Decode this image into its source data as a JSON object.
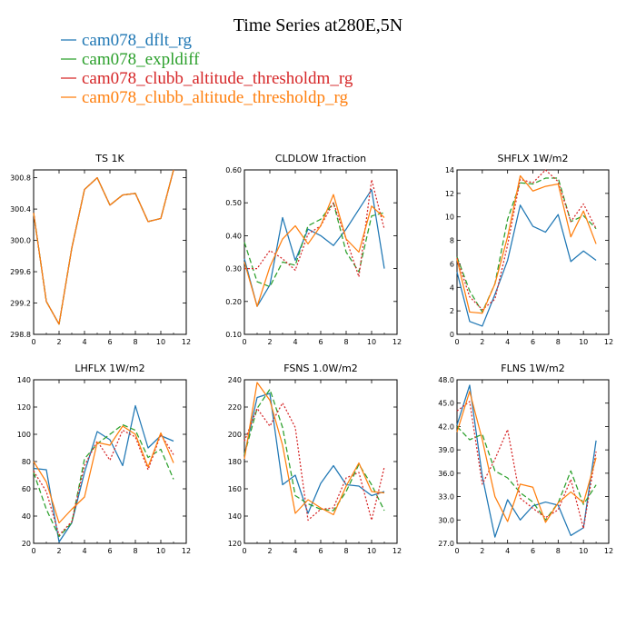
{
  "figure": {
    "title": "Time Series at280E,5N",
    "legend": [
      {
        "name": "cam078_dflt_rg",
        "color": "#1f77b4",
        "dash": "solid"
      },
      {
        "name": "cam078_expldiff",
        "color": "#2ca02c",
        "dash": "dash"
      },
      {
        "name": "cam078_clubb_altitude_thresholdm_rg",
        "color": "#d62728",
        "dash": "dot"
      },
      {
        "name": "cam078_clubb_altitude_thresholdp_rg",
        "color": "#ff7f0e",
        "dash": "solid"
      }
    ]
  },
  "chart_data": [
    {
      "type": "line",
      "title": "TS   1K",
      "x": [
        0,
        1,
        2,
        3,
        4,
        5,
        6,
        7,
        8,
        9,
        10,
        11
      ],
      "xlim": [
        0,
        12
      ],
      "xticks": [
        0,
        2,
        4,
        6,
        8,
        10,
        12
      ],
      "ylim": [
        298.8,
        300.9
      ],
      "yticks": [
        298.8,
        299.2,
        299.6,
        300.0,
        300.4,
        300.8
      ],
      "ydec": 1,
      "series": [
        {
          "name": "cam078_dflt_rg",
          "values": [
            300.35,
            299.22,
            298.93,
            299.9,
            300.65,
            300.8,
            300.45,
            300.58,
            300.6,
            300.24,
            300.28,
            300.9
          ]
        },
        {
          "name": "cam078_expldiff",
          "values": [
            300.35,
            299.22,
            298.93,
            299.9,
            300.65,
            300.8,
            300.45,
            300.58,
            300.6,
            300.24,
            300.28,
            300.9
          ]
        },
        {
          "name": "cam078_clubb_altitude_thresholdm_rg",
          "values": [
            300.35,
            299.22,
            298.93,
            299.9,
            300.65,
            300.8,
            300.45,
            300.58,
            300.6,
            300.24,
            300.28,
            300.9
          ]
        },
        {
          "name": "cam078_clubb_altitude_thresholdp_rg",
          "values": [
            300.35,
            299.22,
            298.93,
            299.9,
            300.65,
            300.8,
            300.45,
            300.58,
            300.6,
            300.24,
            300.28,
            300.9
          ]
        }
      ]
    },
    {
      "type": "line",
      "title": "CLDLOW   1fraction",
      "x": [
        0,
        1,
        2,
        3,
        4,
        5,
        6,
        7,
        8,
        9,
        10,
        11
      ],
      "xlim": [
        0,
        12
      ],
      "xticks": [
        0,
        2,
        4,
        6,
        8,
        10,
        12
      ],
      "ylim": [
        0.1,
        0.6
      ],
      "yticks": [
        0.1,
        0.2,
        0.3,
        0.4,
        0.5,
        0.6
      ],
      "ydec": 2,
      "series": [
        {
          "name": "cam078_dflt_rg",
          "values": [
            0.33,
            0.185,
            0.25,
            0.455,
            0.325,
            0.42,
            0.4,
            0.37,
            0.42,
            0.48,
            0.54,
            0.3
          ]
        },
        {
          "name": "cam078_expldiff",
          "values": [
            0.38,
            0.26,
            0.245,
            0.32,
            0.31,
            0.43,
            0.45,
            0.5,
            0.35,
            0.29,
            0.46,
            0.47
          ]
        },
        {
          "name": "cam078_clubb_altitude_thresholdm_rg",
          "values": [
            0.3,
            0.3,
            0.355,
            0.33,
            0.295,
            0.405,
            0.43,
            0.5,
            0.39,
            0.275,
            0.57,
            0.42
          ]
        },
        {
          "name": "cam078_clubb_altitude_thresholdp_rg",
          "values": [
            0.32,
            0.185,
            0.305,
            0.39,
            0.43,
            0.375,
            0.43,
            0.525,
            0.39,
            0.35,
            0.49,
            0.455
          ]
        }
      ]
    },
    {
      "type": "line",
      "title": "SHFLX   1W/m2",
      "x": [
        0,
        1,
        2,
        3,
        4,
        5,
        6,
        7,
        8,
        9,
        10,
        11
      ],
      "xlim": [
        0,
        12
      ],
      "xticks": [
        0,
        2,
        4,
        6,
        8,
        10,
        12
      ],
      "ylim": [
        0,
        14
      ],
      "yticks": [
        0,
        2,
        4,
        6,
        8,
        10,
        12,
        14
      ],
      "ydec": 0,
      "series": [
        {
          "name": "cam078_dflt_rg",
          "values": [
            5.3,
            1.1,
            0.7,
            3.4,
            6.3,
            11.0,
            9.2,
            8.7,
            10.2,
            6.2,
            7.1,
            6.3
          ]
        },
        {
          "name": "cam078_expldiff",
          "values": [
            6.6,
            3.7,
            1.9,
            4.3,
            9.8,
            12.9,
            12.8,
            13.3,
            13.3,
            9.6,
            10.1,
            9.0
          ]
        },
        {
          "name": "cam078_clubb_altitude_thresholdm_rg",
          "values": [
            6.5,
            3.2,
            2.1,
            3.0,
            7.6,
            13.2,
            12.9,
            14.0,
            13.0,
            9.6,
            11.1,
            9.0
          ]
        },
        {
          "name": "cam078_clubb_altitude_thresholdp_rg",
          "values": [
            6.4,
            1.9,
            1.8,
            4.3,
            8.3,
            13.5,
            12.2,
            12.6,
            12.8,
            8.3,
            10.5,
            7.7
          ]
        }
      ]
    },
    {
      "type": "line",
      "title": "LHFLX   1W/m2",
      "x": [
        0,
        1,
        2,
        3,
        4,
        5,
        6,
        7,
        8,
        9,
        10,
        11
      ],
      "xlim": [
        0,
        12
      ],
      "xticks": [
        0,
        2,
        4,
        6,
        8,
        10,
        12
      ],
      "ylim": [
        20,
        140
      ],
      "yticks": [
        20,
        40,
        60,
        80,
        100,
        120,
        140
      ],
      "ydec": 0,
      "series": [
        {
          "name": "cam078_dflt_rg",
          "values": [
            75,
            74,
            21,
            35,
            72,
            102,
            96,
            77,
            121,
            90,
            99,
            95
          ]
        },
        {
          "name": "cam078_expldiff",
          "values": [
            72,
            45,
            25,
            35,
            82,
            93,
            100,
            107,
            103,
            83,
            89,
            67
          ]
        },
        {
          "name": "cam078_clubb_altitude_thresholdm_rg",
          "values": [
            73,
            58,
            26,
            36,
            77,
            95,
            81,
            103,
            98,
            74,
            100,
            85
          ]
        },
        {
          "name": "cam078_clubb_altitude_thresholdp_rg",
          "values": [
            80,
            65,
            35,
            45,
            54,
            94,
            92,
            106,
            100,
            76,
            101,
            79
          ]
        }
      ]
    },
    {
      "type": "line",
      "title": "FSNS   1.0W/m2",
      "x": [
        0,
        1,
        2,
        3,
        4,
        5,
        6,
        7,
        8,
        9,
        10,
        11
      ],
      "xlim": [
        0,
        12
      ],
      "xticks": [
        0,
        2,
        4,
        6,
        8,
        10,
        12
      ],
      "ylim": [
        120,
        240
      ],
      "yticks": [
        120,
        140,
        160,
        180,
        200,
        220,
        240
      ],
      "ydec": 0,
      "series": [
        {
          "name": "cam078_dflt_rg",
          "values": [
            185,
            227,
            230,
            163,
            170,
            142,
            164,
            177,
            163,
            162,
            155,
            158
          ]
        },
        {
          "name": "cam078_expldiff",
          "values": [
            185,
            219,
            233,
            205,
            155,
            149,
            145,
            144,
            158,
            178,
            163,
            144
          ]
        },
        {
          "name": "cam078_clubb_altitude_thresholdm_rg",
          "values": [
            195,
            219,
            206,
            223,
            205,
            137,
            145,
            146,
            168,
            172,
            137,
            176
          ]
        },
        {
          "name": "cam078_clubb_altitude_thresholdp_rg",
          "values": [
            182,
            238,
            225,
            192,
            142,
            152,
            146,
            141,
            162,
            179,
            158,
            157
          ]
        }
      ]
    },
    {
      "type": "line",
      "title": "FLNS   1W/m2",
      "x": [
        0,
        1,
        2,
        3,
        4,
        5,
        6,
        7,
        8,
        9,
        10,
        11
      ],
      "xlim": [
        0,
        12
      ],
      "xticks": [
        0,
        2,
        4,
        6,
        8,
        10,
        12
      ],
      "ylim": [
        27,
        48
      ],
      "yticks": [
        27.0,
        30.0,
        33.0,
        36.0,
        39.0,
        42.0,
        45.0,
        48.0
      ],
      "ydec": 1,
      "series": [
        {
          "name": "cam078_dflt_rg",
          "values": [
            42.2,
            47.3,
            35.6,
            27.8,
            32.6,
            30.0,
            31.8,
            32.3,
            31.9,
            28.0,
            29.0,
            40.2
          ]
        },
        {
          "name": "cam078_expldiff",
          "values": [
            42.0,
            40.3,
            41.0,
            36.3,
            35.4,
            33.5,
            32.3,
            30.0,
            32.2,
            36.3,
            32.0,
            34.5
          ]
        },
        {
          "name": "cam078_clubb_altitude_thresholdm_rg",
          "values": [
            44.0,
            45.2,
            34.6,
            37.8,
            41.6,
            32.8,
            31.5,
            30.3,
            31.3,
            35.2,
            28.9,
            38.8
          ]
        },
        {
          "name": "cam078_clubb_altitude_thresholdp_rg",
          "values": [
            41.3,
            46.5,
            40.3,
            33.0,
            29.8,
            34.6,
            34.2,
            29.7,
            32.2,
            33.6,
            32.2,
            38.0
          ]
        }
      ]
    }
  ]
}
